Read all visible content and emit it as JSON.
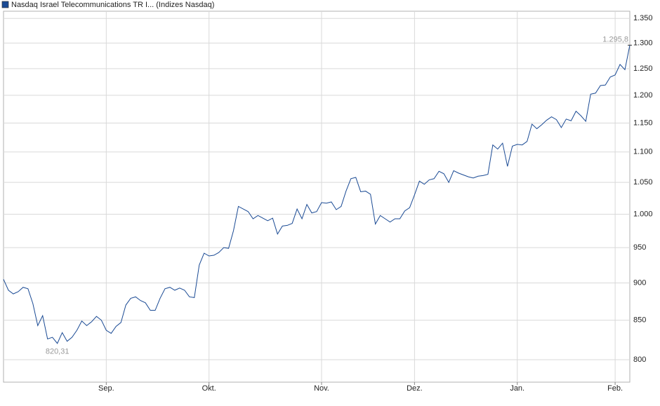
{
  "chart_data": {
    "type": "line",
    "log_scale": true,
    "grid": true,
    "legend": "top-left",
    "categories": [
      null,
      null,
      null,
      null,
      null,
      null,
      null,
      null,
      null,
      null,
      null,
      null,
      null,
      null,
      null,
      null,
      null,
      null,
      null,
      null,
      null,
      "Sep.",
      null,
      null,
      null,
      null,
      null,
      null,
      null,
      null,
      null,
      null,
      null,
      null,
      null,
      null,
      null,
      null,
      null,
      null,
      null,
      null,
      "Okt.",
      null,
      null,
      null,
      null,
      null,
      null,
      null,
      null,
      null,
      null,
      null,
      null,
      null,
      null,
      null,
      null,
      null,
      null,
      null,
      null,
      null,
      null,
      "Nov.",
      null,
      null,
      null,
      null,
      null,
      null,
      null,
      null,
      null,
      null,
      null,
      null,
      null,
      null,
      null,
      null,
      null,
      null,
      "Dez.",
      null,
      null,
      null,
      null,
      null,
      null,
      null,
      null,
      null,
      null,
      null,
      null,
      null,
      null,
      null,
      null,
      null,
      null,
      null,
      null,
      "Jan.",
      null,
      null,
      null,
      null,
      null,
      null,
      null,
      null,
      null,
      null,
      null,
      null,
      null,
      null,
      null,
      null,
      null,
      null,
      null,
      "Feb.",
      null,
      null,
      null
    ],
    "series": [
      {
        "name": "Nasdaq Israel Telecommunications TR I... (Indizes Nasdaq)",
        "color": "#1a4a94",
        "values": [
          905,
          890,
          885,
          888,
          894,
          892,
          872,
          843,
          856,
          826,
          828,
          820.31,
          834,
          823,
          828,
          837,
          849,
          843,
          848,
          855,
          850,
          837,
          833,
          842,
          847,
          870,
          879,
          881,
          876,
          873,
          863,
          863,
          879,
          892,
          894,
          890,
          893,
          890,
          881,
          880,
          925,
          942,
          938,
          939,
          943,
          950,
          949,
          975,
          1012,
          1008,
          1004,
          993,
          998,
          994,
          990,
          994,
          970,
          982,
          983,
          986,
          1008,
          993,
          1015,
          1002,
          1004,
          1018,
          1017,
          1019,
          1007,
          1012,
          1036,
          1056,
          1058,
          1035,
          1036,
          1031,
          985,
          998,
          993,
          988,
          993,
          993,
          1005,
          1010,
          1030,
          1052,
          1047,
          1054,
          1056,
          1068,
          1064,
          1050,
          1069,
          1065,
          1062,
          1059,
          1057,
          1060,
          1061,
          1063,
          1112,
          1105,
          1115,
          1076,
          1110,
          1113,
          1112,
          1118,
          1148,
          1140,
          1147,
          1155,
          1161,
          1156,
          1142,
          1157,
          1154,
          1171,
          1163,
          1153,
          1202,
          1204,
          1218,
          1219,
          1234,
          1238,
          1258,
          1248,
          1295.8
        ],
        "value_labels": [
          null,
          null,
          null,
          null,
          null,
          null,
          null,
          null,
          null,
          null,
          null,
          "820,31",
          null,
          null,
          null,
          null,
          null,
          null,
          null,
          null,
          null,
          null,
          null,
          null,
          null,
          null,
          null,
          null,
          null,
          null,
          null,
          null,
          null,
          null,
          null,
          null,
          null,
          null,
          null,
          null,
          null,
          null,
          null,
          null,
          null,
          null,
          null,
          null,
          null,
          null,
          null,
          null,
          null,
          null,
          null,
          null,
          null,
          null,
          null,
          null,
          null,
          null,
          null,
          null,
          null,
          null,
          null,
          null,
          null,
          null,
          null,
          null,
          null,
          null,
          null,
          null,
          null,
          null,
          null,
          null,
          null,
          null,
          null,
          null,
          null,
          null,
          null,
          null,
          null,
          null,
          null,
          null,
          null,
          null,
          null,
          null,
          null,
          null,
          null,
          null,
          null,
          null,
          null,
          null,
          null,
          null,
          null,
          null,
          null,
          null,
          null,
          null,
          null,
          null,
          null,
          null,
          null,
          null,
          null,
          null,
          null,
          null,
          null,
          null,
          null,
          null,
          null,
          null,
          "1.295,8"
        ]
      }
    ],
    "ylim": [
      773,
      1365
    ],
    "yticks": [
      800,
      850,
      900,
      950,
      {
        "value": 1000,
        "label": "1.000"
      },
      {
        "value": 1050,
        "label": "1.050"
      },
      {
        "value": 1100,
        "label": "1.100"
      },
      {
        "value": 1150,
        "label": "1.150"
      },
      {
        "value": 1200,
        "label": "1.200"
      },
      {
        "value": 1250,
        "label": "1.250"
      },
      {
        "value": 1300,
        "label": "1.300"
      },
      {
        "value": 1350,
        "label": "1.350"
      }
    ]
  }
}
